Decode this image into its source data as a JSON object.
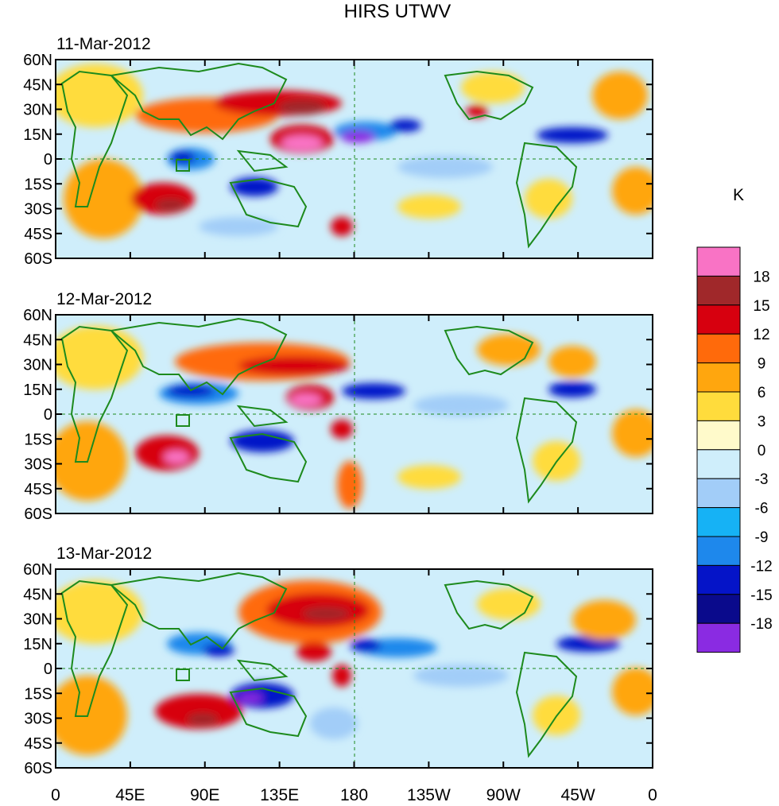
{
  "title": "HIRS UTWV",
  "units": "K",
  "panels": [
    {
      "date": "11-Mar-2012"
    },
    {
      "date": "12-Mar-2012"
    },
    {
      "date": "13-Mar-2012"
    }
  ],
  "lat_labels": [
    "60N",
    "45N",
    "30N",
    "15N",
    "0",
    "15S",
    "30S",
    "45S",
    "60S"
  ],
  "lon_labels": [
    "0",
    "45E",
    "90E",
    "135E",
    "180",
    "135W",
    "90W",
    "45W",
    "0"
  ],
  "colorbar": {
    "labels": [
      "18",
      "15",
      "12",
      "9",
      "6",
      "3",
      "0",
      "-3",
      "-6",
      "-9",
      "-12",
      "-15",
      "-18"
    ],
    "colors": [
      "#f973c5",
      "#a0282a",
      "#d7000f",
      "#ff6a0b",
      "#ffa60e",
      "#ffdc3c",
      "#fffacb",
      "#cfeefb",
      "#a2cdf8",
      "#16b2f5",
      "#1e88ec",
      "#0514c8",
      "#0a0a8c",
      "#8a2be2"
    ]
  },
  "colors": {
    "coast": "#1d8a1d",
    "background_field": "#cfeefb"
  }
}
